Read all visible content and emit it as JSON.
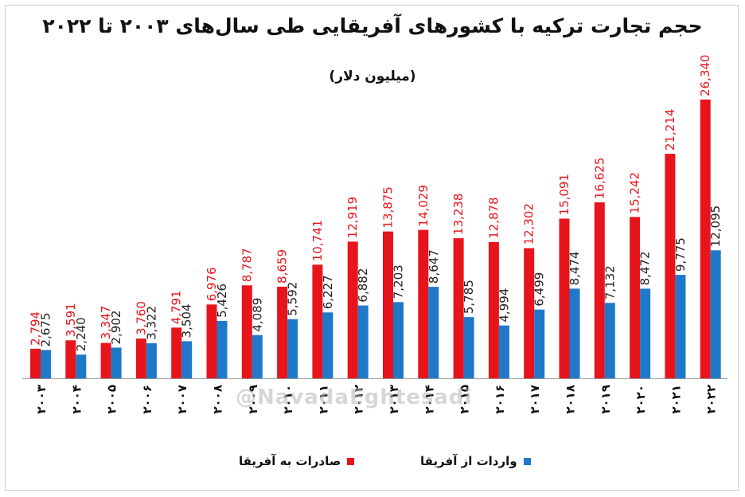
{
  "header": {
    "title": "حجم تجارت ترکیه با کشورهای آفریقایی طی سال‌های ۲۰۰۳ تا ۲۰۲۲",
    "subtitle": "(میلیون دلار)"
  },
  "watermark": "@NavadaEghtesadi",
  "colors": {
    "exports": "#e8141c",
    "imports": "#1f78c8",
    "export_label": "#e8141c",
    "import_label": "#222222"
  },
  "chart_data": {
    "type": "bar",
    "title": "حجم تجارت ترکیه با کشورهای آفریقایی طی سال‌های ۲۰۰۳ تا ۲۰۲۲",
    "subtitle": "(میلیون دلار)",
    "categories": [
      "۲۰۰۳",
      "۲۰۰۴",
      "۲۰۰۵",
      "۲۰۰۶",
      "۲۰۰۷",
      "۲۰۰۸",
      "۲۰۰۹",
      "۲۰۱۰",
      "۲۰۱۱",
      "۲۰۱۲",
      "۲۰۱۳",
      "۲۰۱۴",
      "۲۰۱۵",
      "۲۰۱۶",
      "۲۰۱۷",
      "۲۰۱۸",
      "۲۰۱۹",
      "۲۰۲۰",
      "۲۰۲۱",
      "۲۰۲۲"
    ],
    "series": [
      {
        "name": "صادرات به آفریقا",
        "color": "#e8141c",
        "values": [
          2794,
          3591,
          3347,
          3760,
          4791,
          6976,
          8787,
          8659,
          10741,
          12919,
          13875,
          14029,
          13238,
          12878,
          12302,
          15091,
          16625,
          15242,
          21214,
          26340
        ],
        "labels": [
          "2,794",
          "3,591",
          "3,347",
          "3,760",
          "4,791",
          "6,976",
          "8,787",
          "8,659",
          "10,741",
          "12,919",
          "13,875",
          "14,029",
          "13,238",
          "12,878",
          "12,302",
          "15,091",
          "16,625",
          "15,242",
          "21,214",
          "26,340"
        ]
      },
      {
        "name": "واردات از آفریقا",
        "color": "#1f78c8",
        "values": [
          2675,
          2240,
          2902,
          3322,
          3504,
          5426,
          4089,
          5592,
          6227,
          6882,
          7203,
          8647,
          5785,
          4994,
          6499,
          8474,
          7132,
          8472,
          9775,
          12095
        ],
        "labels": [
          "2,675",
          "2,240",
          "2,902",
          "3,322",
          "3,504",
          "5,426",
          "4,089",
          "5,592",
          "6,227",
          "6,882",
          "7,203",
          "8,647",
          "5,785",
          "4,994",
          "6,499",
          "8,474",
          "7,132",
          "8,472",
          "9,775",
          "12,095"
        ]
      }
    ],
    "ylim": [
      0,
      30000
    ],
    "grid": false,
    "legend_position": "bottom"
  }
}
